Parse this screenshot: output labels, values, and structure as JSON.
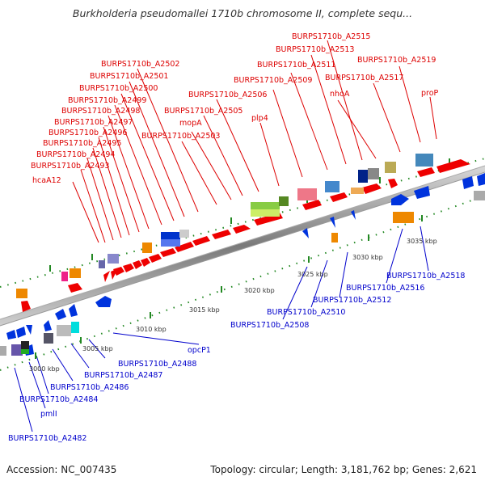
{
  "title": "Burkholderia pseudomallei 1710b chromosome II, complete sequ...",
  "footer": {
    "accession": "Accession: NC_007435",
    "summary": "Topology: circular; Length: 3,181,762 bp; Genes: 2,621"
  },
  "scale_labels": [
    "3000 kbp",
    "3005 kbp",
    "3010 kbp",
    "3015 kbp",
    "3020 kbp",
    "3025 kbp",
    "3030 kbp",
    "3035 kbp"
  ],
  "top_labels": [
    "hcaA12",
    "BURPS1710b_A2493",
    "BURPS1710b_A2494",
    "BURPS1710b_A2495",
    "BURPS1710b_A2496",
    "BURPS1710b_A2497",
    "BURPS1710b_A2498",
    "BURPS1710b_A2499",
    "BURPS1710b_A2500",
    "BURPS1710b_A2501",
    "BURPS1710b_A2502",
    "BURPS1710b_A2503",
    "mopA",
    "BURPS1710b_A2505",
    "BURPS1710b_A2506",
    "plp4",
    "BURPS1710b_A2509",
    "BURPS1710b_A2511",
    "BURPS1710b_A2513",
    "BURPS1710b_A2515",
    "nhoA",
    "BURPS1710b_A2517",
    "BURPS1710b_A2519",
    "proP"
  ],
  "bottom_labels": [
    "opcP1",
    "BURPS1710b_A2488",
    "BURPS1710b_A2487",
    "BURPS1710b_A2486",
    "BURPS1710b_A2484",
    "pmlI",
    "BURPS1710b_A2482",
    "BURPS1710b_A2508",
    "BURPS1710b_A2510",
    "BURPS1710b_A2512",
    "BURPS1710b_A2516",
    "BURPS1710b_A2518"
  ],
  "colors": {
    "forward_label": "#dd0000",
    "reverse_label": "#0000cc",
    "backbone": "#888888",
    "tick": "#228822"
  }
}
